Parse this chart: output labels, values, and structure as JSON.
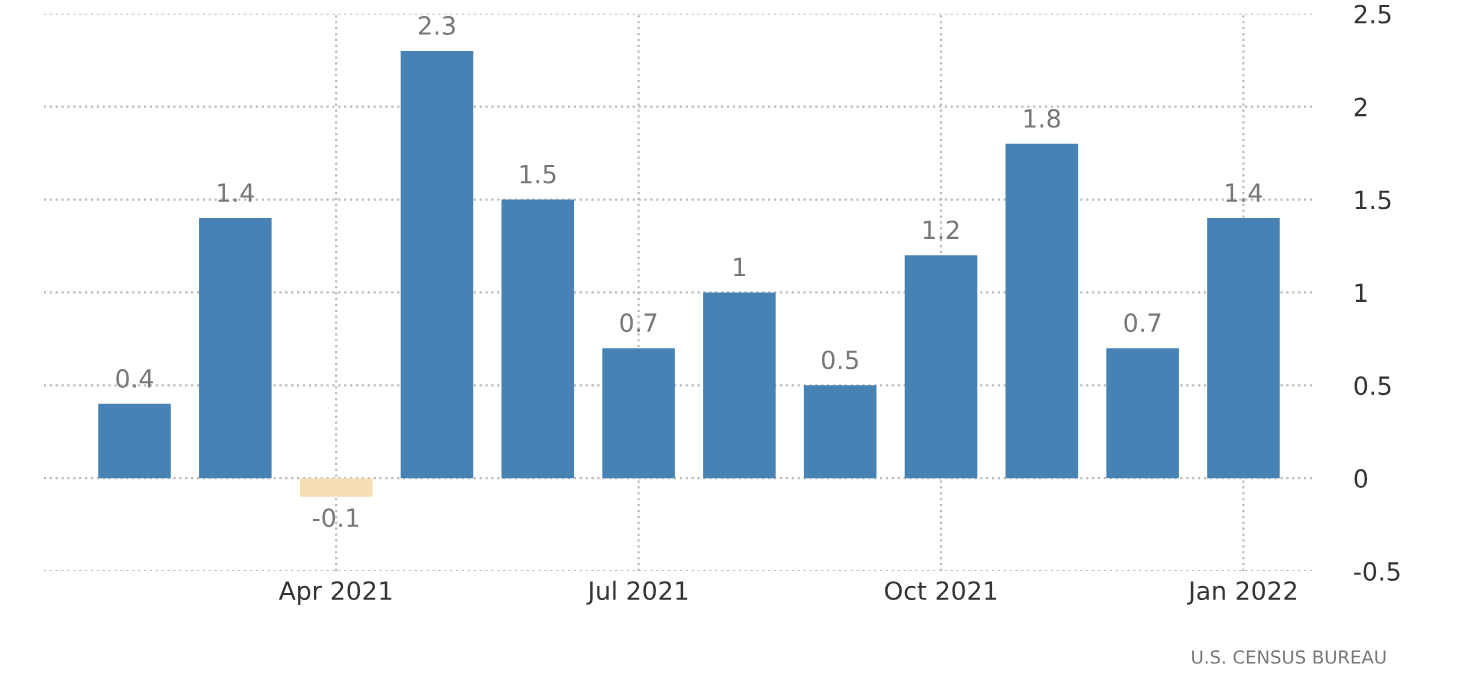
{
  "chart_data": {
    "type": "bar",
    "categories": [
      null,
      null,
      "Apr 2021",
      null,
      null,
      "Jul 2021",
      null,
      null,
      "Oct 2021",
      null,
      null,
      "Jan 2022"
    ],
    "values": [
      0.4,
      1.4,
      -0.1,
      2.3,
      1.5,
      0.7,
      1,
      0.5,
      1.2,
      1.8,
      0.7,
      1.4
    ],
    "colors": [
      "#4682b4",
      "#4682b4",
      "#f5deb3",
      "#4682b4",
      "#4682b4",
      "#4682b4",
      "#4682b4",
      "#4682b4",
      "#4682b4",
      "#4682b4",
      "#4682b4",
      "#4682b4"
    ],
    "ylim": [
      -0.5,
      2.5
    ],
    "yticks": [
      -0.5,
      0,
      0.5,
      1,
      1.5,
      2,
      2.5
    ],
    "grid": true,
    "data_labels": true,
    "annotations": [
      "U.S. CENSUS BUREAU"
    ]
  }
}
